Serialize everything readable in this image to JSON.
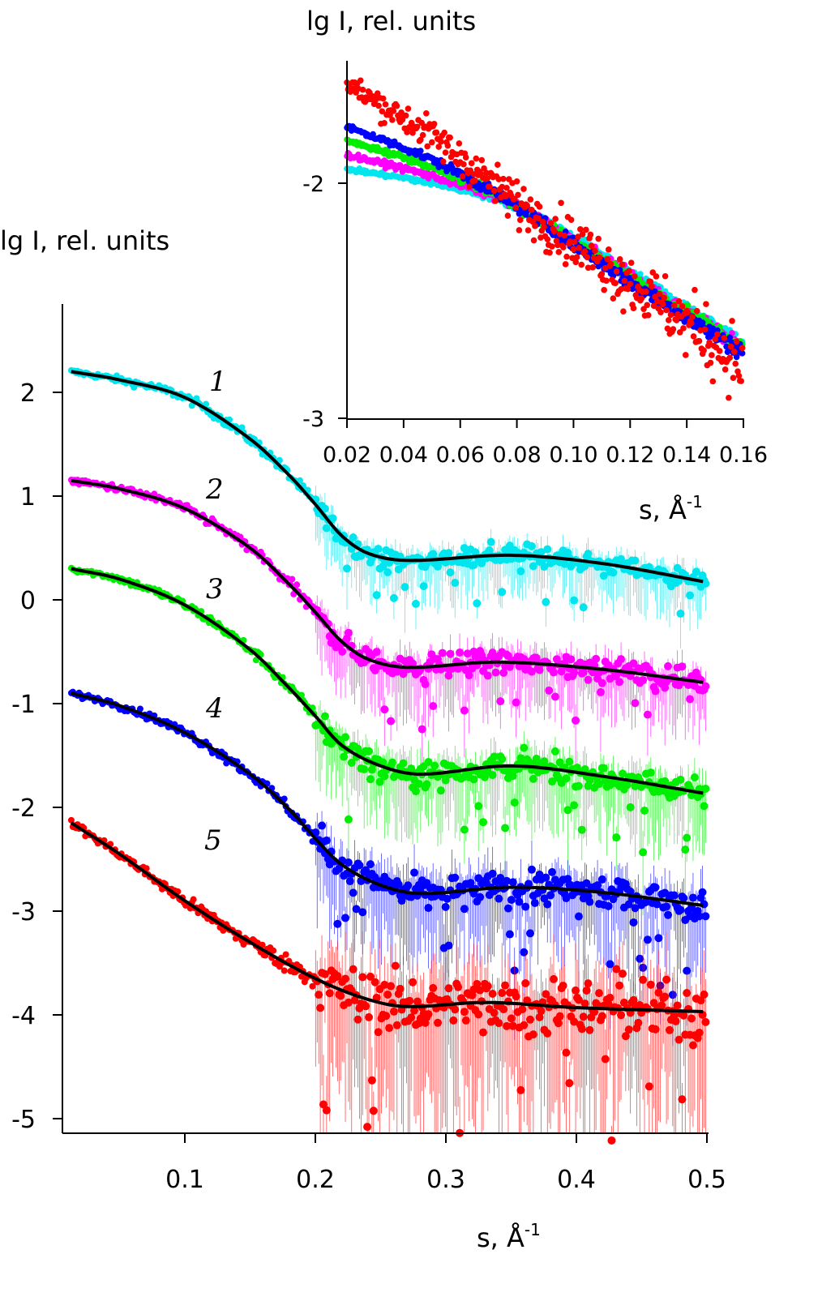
{
  "chart_data": [
    {
      "type": "scatter",
      "title": "",
      "xlabel": "s, Å",
      "xlabel_sup": "-1",
      "ylabel": "lg I, rel. units",
      "xlim": [
        0.006,
        0.5
      ],
      "ylim": [
        -5.14,
        2.85
      ],
      "xticks": [
        0.1,
        0.2,
        0.3,
        0.4,
        0.5
      ],
      "xtick_labels": [
        "0.1",
        "0.2",
        "0.3",
        "0.4",
        "0.5"
      ],
      "yticks": [
        2,
        1,
        0,
        -1,
        -2,
        -3,
        -4,
        -5
      ],
      "ytick_labels": [
        "2",
        "1",
        "0",
        "-1",
        "-2",
        "-3",
        "-4",
        "-5"
      ],
      "grid": false,
      "series": [
        {
          "name": "1",
          "color": "#00e5ee",
          "noise_small": 0.02,
          "noise_large": 0.09,
          "fit": [
            [
              0.013,
              2.2
            ],
            [
              0.05,
              2.12
            ],
            [
              0.1,
              1.95
            ],
            [
              0.15,
              1.55
            ],
            [
              0.18,
              1.2
            ],
            [
              0.2,
              0.92
            ],
            [
              0.22,
              0.62
            ],
            [
              0.24,
              0.45
            ],
            [
              0.27,
              0.38
            ],
            [
              0.35,
              0.43
            ],
            [
              0.42,
              0.35
            ],
            [
              0.5,
              0.17
            ]
          ]
        },
        {
          "name": "2",
          "color": "#ff00ff",
          "noise_small": 0.02,
          "noise_large": 0.11,
          "fit": [
            [
              0.013,
              1.15
            ],
            [
              0.05,
              1.07
            ],
            [
              0.1,
              0.88
            ],
            [
              0.15,
              0.5
            ],
            [
              0.18,
              0.15
            ],
            [
              0.2,
              -0.12
            ],
            [
              0.22,
              -0.4
            ],
            [
              0.24,
              -0.57
            ],
            [
              0.27,
              -0.65
            ],
            [
              0.34,
              -0.6
            ],
            [
              0.42,
              -0.67
            ],
            [
              0.5,
              -0.8
            ]
          ]
        },
        {
          "name": "3",
          "color": "#00ee00",
          "noise_small": 0.02,
          "noise_large": 0.13,
          "fit": [
            [
              0.013,
              0.3
            ],
            [
              0.05,
              0.2
            ],
            [
              0.1,
              -0.05
            ],
            [
              0.15,
              -0.48
            ],
            [
              0.18,
              -0.85
            ],
            [
              0.2,
              -1.12
            ],
            [
              0.22,
              -1.4
            ],
            [
              0.25,
              -1.6
            ],
            [
              0.28,
              -1.68
            ],
            [
              0.35,
              -1.6
            ],
            [
              0.42,
              -1.7
            ],
            [
              0.5,
              -1.87
            ]
          ]
        },
        {
          "name": "4",
          "color": "#0000ff",
          "noise_small": 0.02,
          "noise_large": 0.16,
          "fit": [
            [
              0.013,
              -0.9
            ],
            [
              0.05,
              -1.02
            ],
            [
              0.1,
              -1.28
            ],
            [
              0.15,
              -1.68
            ],
            [
              0.18,
              -2.02
            ],
            [
              0.2,
              -2.3
            ],
            [
              0.22,
              -2.55
            ],
            [
              0.25,
              -2.75
            ],
            [
              0.28,
              -2.83
            ],
            [
              0.35,
              -2.77
            ],
            [
              0.42,
              -2.82
            ],
            [
              0.5,
              -2.95
            ]
          ]
        },
        {
          "name": "5",
          "color": "#ff0000",
          "noise_small": 0.03,
          "noise_large": 0.28,
          "fit": [
            [
              0.013,
              -2.15
            ],
            [
              0.05,
              -2.45
            ],
            [
              0.1,
              -2.9
            ],
            [
              0.15,
              -3.3
            ],
            [
              0.2,
              -3.65
            ],
            [
              0.24,
              -3.85
            ],
            [
              0.27,
              -3.92
            ],
            [
              0.33,
              -3.88
            ],
            [
              0.4,
              -3.93
            ],
            [
              0.5,
              -3.97
            ]
          ]
        }
      ]
    },
    {
      "type": "scatter",
      "title": "inset",
      "xlabel": "s, Å",
      "xlabel_sup": "-1",
      "ylabel": "lg I, rel. units",
      "xlim": [
        0.02,
        0.16
      ],
      "ylim": [
        -3,
        -1.48
      ],
      "xticks": [
        0.02,
        0.04,
        0.06,
        0.08,
        0.1,
        0.12,
        0.14,
        0.16
      ],
      "xtick_labels": [
        "0.02",
        "0.04",
        "0.06",
        "0.08",
        "0.10",
        "0.12",
        "0.14",
        "0.16"
      ],
      "yticks": [
        -2,
        -3
      ],
      "ytick_labels": [
        "-2",
        "-3"
      ],
      "series": [
        {
          "name": "cyan",
          "color": "#00e5ee",
          "noise": 0.008,
          "fit": [
            [
              0.02,
              -1.94
            ],
            [
              0.05,
              -2.0
            ],
            [
              0.08,
              -2.1
            ],
            [
              0.12,
              -2.38
            ],
            [
              0.16,
              -2.68
            ]
          ]
        },
        {
          "name": "magenta",
          "color": "#ff00ff",
          "noise": 0.01,
          "fit": [
            [
              0.02,
              -1.88
            ],
            [
              0.05,
              -1.97
            ],
            [
              0.08,
              -2.1
            ],
            [
              0.12,
              -2.4
            ],
            [
              0.16,
              -2.7
            ]
          ]
        },
        {
          "name": "green",
          "color": "#00ee00",
          "noise": 0.01,
          "fit": [
            [
              0.02,
              -1.82
            ],
            [
              0.05,
              -1.93
            ],
            [
              0.08,
              -2.1
            ],
            [
              0.12,
              -2.4
            ],
            [
              0.16,
              -2.7
            ]
          ]
        },
        {
          "name": "blue",
          "color": "#0000ff",
          "noise": 0.012,
          "fit": [
            [
              0.02,
              -1.76
            ],
            [
              0.05,
              -1.9
            ],
            [
              0.08,
              -2.1
            ],
            [
              0.12,
              -2.42
            ],
            [
              0.16,
              -2.72
            ]
          ]
        },
        {
          "name": "red",
          "color": "#ff0000",
          "noise": 0.05,
          "fit": [
            [
              0.02,
              -1.58
            ],
            [
              0.05,
              -1.8
            ],
            [
              0.08,
              -2.08
            ],
            [
              0.12,
              -2.42
            ],
            [
              0.16,
              -2.78
            ]
          ]
        }
      ]
    }
  ]
}
